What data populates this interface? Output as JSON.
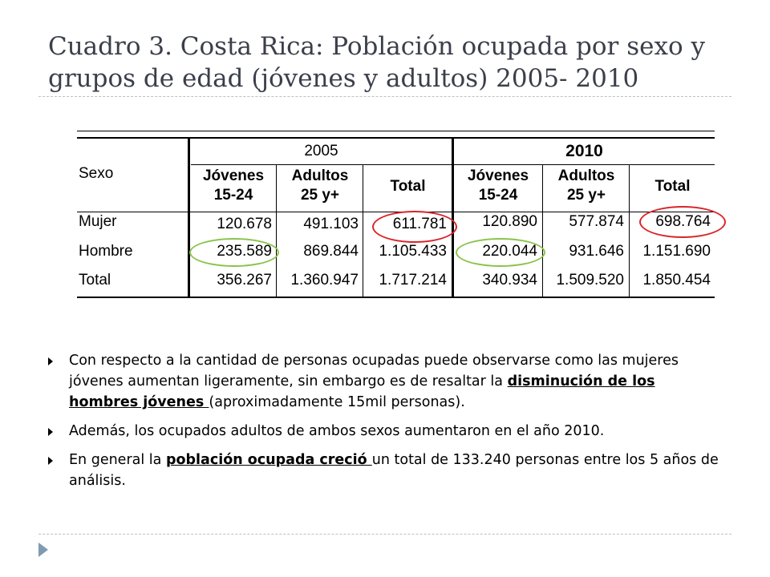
{
  "title": "Cuadro 3. Costa Rica: Población ocupada por sexo y grupos de edad (jóvenes y adultos) 2005- 2010",
  "table": {
    "sexo_header": "Sexo",
    "year_2005": "2005",
    "year_2010": "2010",
    "col_jovenes_1": "Jóvenes",
    "col_jovenes_2": "15-24",
    "col_adultos_1": "Adultos",
    "col_adultos_2": "25 y+",
    "col_total": "Total",
    "rows": [
      {
        "label": "Mujer",
        "v": [
          "120.678",
          "491.103",
          "611.781",
          "120.890",
          "577.874",
          "698.764"
        ]
      },
      {
        "label": "Hombre",
        "v": [
          "235.589",
          "869.844",
          "1.105.433",
          "220.044",
          "931.646",
          "1.151.690"
        ]
      },
      {
        "label": "Total",
        "v": [
          "356.267",
          "1.360.947",
          "1.717.214",
          "340.934",
          "1.509.520",
          "1.850.454"
        ]
      }
    ],
    "highlight_red": "#d9252a",
    "highlight_green": "#8ac34a"
  },
  "bullets": {
    "b1_pre": "Con respecto a la cantidad de personas ocupadas puede observarse como las mujeres jóvenes aumentan ligeramente, sin embargo es de resaltar la ",
    "b1_em": "disminución de los hombres jóvenes ",
    "b1_post": "(aproximadamente 15mil personas).",
    "b2": "Además, los ocupados adultos de ambos sexos aumentaron en el año 2010.",
    "b3_pre": "En general la ",
    "b3_em": "población ocupada creció ",
    "b3_post": "un total de 133.240 personas entre los 5 años de análisis."
  },
  "colors": {
    "title": "#3a3f4a",
    "rule": "#b9c3cc",
    "accent_arrow": "#7f9bb0"
  }
}
